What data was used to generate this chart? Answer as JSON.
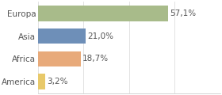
{
  "categories": [
    "America",
    "Africa",
    "Asia",
    "Europa"
  ],
  "values": [
    3.2,
    18.7,
    21.0,
    57.1
  ],
  "labels": [
    "3,2%",
    "18,7%",
    "21,0%",
    "57,1%"
  ],
  "bar_colors": [
    "#e8c96a",
    "#e8aa7a",
    "#6e8fb8",
    "#a8bb8a"
  ],
  "background_color": "#ffffff",
  "xlim": [
    0,
    80
  ],
  "bar_height": 0.68,
  "label_fontsize": 7.5,
  "tick_fontsize": 7.5,
  "grid_color": "#dddddd",
  "spine_color": "#cccccc",
  "text_color": "#555555",
  "grid_ticks": [
    0,
    20,
    40,
    60,
    80
  ]
}
